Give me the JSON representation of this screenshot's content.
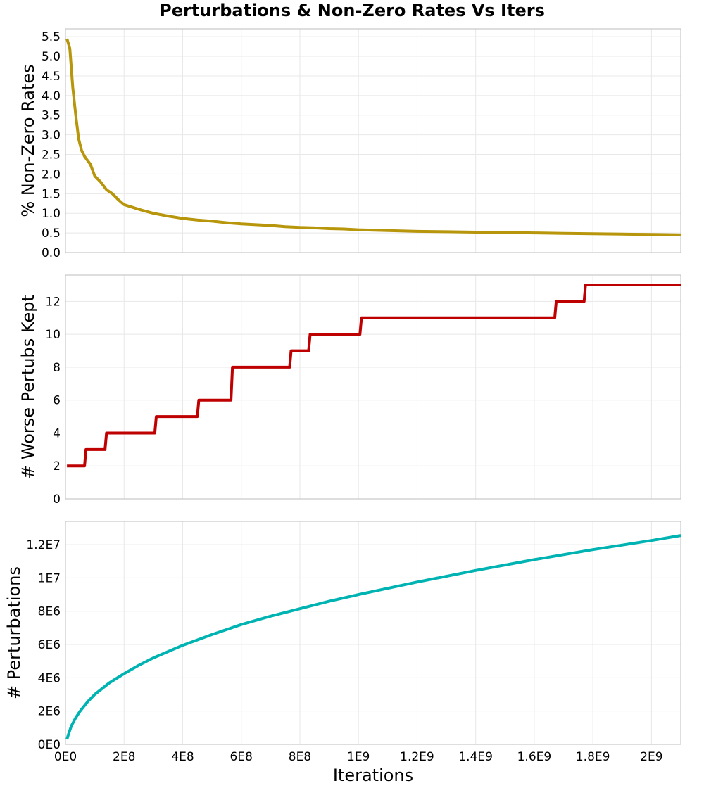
{
  "title": "Perturbations & Non-Zero Rates Vs Iters",
  "xlabel": "Iterations",
  "x_axis": {
    "range": [
      0,
      2100000000
    ],
    "ticks": [
      0,
      200000000,
      400000000,
      600000000,
      800000000,
      1000000000,
      1200000000,
      1400000000,
      1600000000,
      1800000000,
      2000000000
    ],
    "tick_labels": [
      "0E0",
      "2E8",
      "4E8",
      "6E8",
      "8E8",
      "1E9",
      "1.2E9",
      "1.4E9",
      "1.6E9",
      "1.8E9",
      "2E9"
    ]
  },
  "chart_data": [
    {
      "type": "line",
      "ylabel": "% Non-Zero Rates",
      "ylim": [
        0,
        5.7
      ],
      "yticks": [
        0,
        0.5,
        1.0,
        1.5,
        2.0,
        2.5,
        3.0,
        3.5,
        4.0,
        4.5,
        5.0,
        5.5
      ],
      "ytick_labels": [
        "0.0",
        "0.5",
        "1.0",
        "1.5",
        "2.0",
        "2.5",
        "3.0",
        "3.5",
        "4.0",
        "4.5",
        "5.0",
        "5.5"
      ],
      "grid": true,
      "color": "#b8960b",
      "series": [
        {
          "x": [
            5000000,
            15000000,
            25000000,
            35000000,
            45000000,
            55000000,
            65000000,
            75000000,
            85000000,
            100000000,
            120000000,
            140000000,
            160000000,
            180000000,
            200000000,
            230000000,
            260000000,
            300000000,
            350000000,
            400000000,
            450000000,
            500000000,
            550000000,
            600000000,
            650000000,
            700000000,
            750000000,
            800000000,
            850000000,
            900000000,
            950000000,
            1000000000,
            1100000000,
            1200000000,
            1300000000,
            1400000000,
            1500000000,
            1600000000,
            1700000000,
            1800000000,
            1900000000,
            2000000000,
            2100000000
          ],
          "y": [
            5.45,
            5.2,
            4.2,
            3.5,
            2.9,
            2.6,
            2.45,
            2.35,
            2.25,
            1.95,
            1.8,
            1.6,
            1.5,
            1.35,
            1.22,
            1.15,
            1.08,
            1.0,
            0.93,
            0.87,
            0.83,
            0.8,
            0.76,
            0.73,
            0.71,
            0.69,
            0.66,
            0.64,
            0.63,
            0.61,
            0.6,
            0.58,
            0.56,
            0.54,
            0.53,
            0.52,
            0.51,
            0.5,
            0.49,
            0.48,
            0.47,
            0.46,
            0.45
          ]
        }
      ]
    },
    {
      "type": "line",
      "ylabel": "# Worse Pertubs Kept",
      "ylim": [
        0,
        13.6
      ],
      "yticks": [
        0,
        2,
        4,
        6,
        8,
        10,
        12
      ],
      "ytick_labels": [
        "0",
        "2",
        "4",
        "6",
        "8",
        "10",
        "12"
      ],
      "grid": true,
      "color": "#bf0000",
      "series": [
        {
          "x": [
            5000000,
            65000000,
            70000000,
            135000000,
            140000000,
            305000000,
            310000000,
            450000000,
            455000000,
            565000000,
            570000000,
            765000000,
            770000000,
            830000000,
            835000000,
            1005000000,
            1010000000,
            1670000000,
            1675000000,
            1770000000,
            1775000000,
            2100000000
          ],
          "y": [
            2,
            2,
            3,
            3,
            4,
            4,
            5,
            5,
            6,
            6,
            8,
            8,
            9,
            9,
            10,
            10,
            11,
            11,
            12,
            12,
            13,
            13
          ]
        }
      ]
    },
    {
      "type": "line",
      "ylabel": "# Perturbations",
      "ylim": [
        0,
        13400000
      ],
      "yticks": [
        0,
        2000000,
        4000000,
        6000000,
        8000000,
        10000000,
        12000000
      ],
      "ytick_labels": [
        "0E0",
        "2E6",
        "4E6",
        "6E6",
        "8E6",
        "1E7",
        "1.2E7"
      ],
      "grid": true,
      "color": "#00b3b3",
      "series": [
        {
          "x": [
            5000000,
            10000000,
            20000000,
            35000000,
            50000000,
            75000000,
            100000000,
            150000000,
            200000000,
            250000000,
            300000000,
            400000000,
            500000000,
            600000000,
            700000000,
            800000000,
            900000000,
            1000000000,
            1200000000,
            1400000000,
            1600000000,
            1800000000,
            2000000000,
            2100000000
          ],
          "y": [
            300000,
            600000,
            1100000,
            1600000,
            2000000,
            2550000,
            3000000,
            3700000,
            4250000,
            4750000,
            5200000,
            5950000,
            6600000,
            7200000,
            7700000,
            8150000,
            8600000,
            9000000,
            9750000,
            10450000,
            11100000,
            11700000,
            12250000,
            12550000
          ]
        }
      ]
    }
  ]
}
